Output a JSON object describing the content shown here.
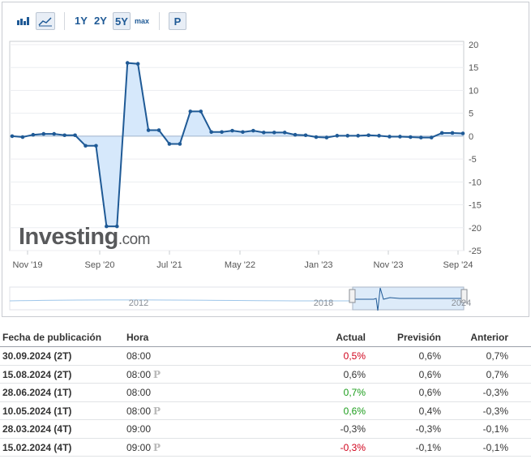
{
  "toolbar": {
    "range_buttons": [
      "1Y",
      "2Y",
      "5Y",
      "max"
    ],
    "active_range": "5Y",
    "p_button": "P",
    "icons": [
      "bar-chart-icon",
      "area-chart-icon"
    ]
  },
  "chart_data": {
    "type": "area",
    "title": "",
    "xlabel": "",
    "ylabel": "",
    "ylim": [
      -25,
      20
    ],
    "y_ticks": [
      20,
      15,
      10,
      5,
      0,
      -5,
      -10,
      -15,
      -20,
      -25
    ],
    "x_tick_labels": [
      "Nov '19",
      "Sep '20",
      "Jul '21",
      "May '22",
      "Jan '23",
      "Nov '23",
      "Sep '24"
    ],
    "grid": true,
    "line_color": "#1f5a96",
    "fill_color": "#d6e8fb",
    "series": [
      {
        "values": [
          0.0,
          -0.2,
          0.3,
          0.5,
          0.5,
          0.2,
          0.2,
          -2.1,
          -2.1,
          -19.7,
          -19.7,
          16.0,
          15.8,
          1.3,
          1.3,
          -1.7,
          -1.7,
          5.4,
          5.4,
          0.9,
          0.9,
          1.2,
          0.9,
          1.2,
          0.8,
          0.8,
          0.8,
          0.3,
          0.2,
          -0.2,
          -0.3,
          0.1,
          0.1,
          0.1,
          0.2,
          0.1,
          -0.1,
          -0.1,
          -0.2,
          -0.3,
          -0.3,
          0.7,
          0.7,
          0.6
        ]
      }
    ],
    "navigator": {
      "labels": [
        "2012",
        "2018",
        "2024"
      ]
    }
  },
  "watermark": "Investing.com",
  "table": {
    "headers": {
      "date": "Fecha de publicación",
      "time": "Hora",
      "actual": "Actual",
      "forecast": "Previsión",
      "previous": "Anterior"
    },
    "rows": [
      {
        "date": "30.09.2024 (2T)",
        "time": "08:00",
        "preliminary": false,
        "actual": "0,5%",
        "actual_color": "red",
        "forecast": "0,6%",
        "previous": "0,7%"
      },
      {
        "date": "15.08.2024 (2T)",
        "time": "08:00",
        "preliminary": true,
        "actual": "0,6%",
        "actual_color": "neutral",
        "forecast": "0,6%",
        "previous": "0,7%"
      },
      {
        "date": "28.06.2024 (1T)",
        "time": "08:00",
        "preliminary": false,
        "actual": "0,7%",
        "actual_color": "green",
        "forecast": "0,6%",
        "previous": "-0,3%"
      },
      {
        "date": "10.05.2024 (1T)",
        "time": "08:00",
        "preliminary": true,
        "actual": "0,6%",
        "actual_color": "green",
        "forecast": "0,4%",
        "previous": "-0,3%"
      },
      {
        "date": "28.03.2024 (4T)",
        "time": "09:00",
        "preliminary": false,
        "actual": "-0,3%",
        "actual_color": "neutral",
        "forecast": "-0,3%",
        "previous": "-0,1%"
      },
      {
        "date": "15.02.2024 (4T)",
        "time": "09:00",
        "preliminary": true,
        "actual": "-0,3%",
        "actual_color": "red",
        "forecast": "-0,1%",
        "previous": "-0,1%"
      }
    ],
    "preliminary_mark": "P"
  }
}
